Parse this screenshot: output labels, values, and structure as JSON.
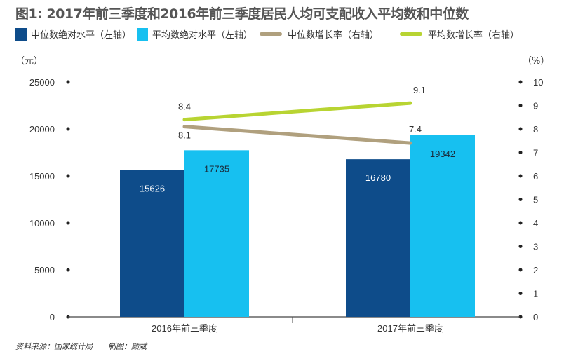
{
  "chart_data": {
    "type": "bar",
    "title": "图1: 2017年前三季度和2016年前三季度居民人均可支配收入平均数和中位数",
    "categories": [
      "2016年前三季度",
      "2017年前三季度"
    ],
    "series": [
      {
        "name": "中位数绝对水平（左轴）",
        "type": "bar",
        "axis": "left",
        "color": "#0e4c8a",
        "values": [
          15626,
          16780
        ]
      },
      {
        "name": "平均数绝对水平（左轴）",
        "type": "bar",
        "axis": "left",
        "color": "#17c0f0",
        "values": [
          17735,
          19342
        ]
      },
      {
        "name": "中位数增长率（右轴）",
        "type": "line",
        "axis": "right",
        "color": "#b0a07e",
        "values": [
          8.1,
          7.4
        ]
      },
      {
        "name": "平均数增长率（右轴）",
        "type": "line",
        "axis": "right",
        "color": "#b8d432",
        "values": [
          8.4,
          9.1
        ]
      }
    ],
    "left_axis": {
      "unit": "（元）",
      "range": [
        0,
        25000
      ],
      "ticks": [
        0,
        5000,
        10000,
        15000,
        20000,
        25000
      ]
    },
    "right_axis": {
      "unit": "（%）",
      "range": [
        0,
        10
      ],
      "ticks": [
        0,
        1,
        2,
        3,
        4,
        5,
        6,
        7,
        8,
        9,
        10
      ]
    },
    "legend_position": "top",
    "grid": false
  },
  "footer": {
    "source": "资料来源：国家统计局",
    "author": "制图：颜斌"
  }
}
